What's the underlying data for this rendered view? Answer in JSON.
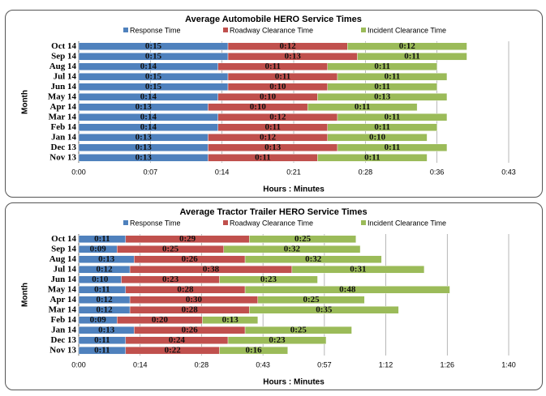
{
  "chart_data": [
    {
      "type": "bar",
      "orientation": "horizontal",
      "stacked": true,
      "title": "Average Automobile HERO Service Times",
      "xlabel": "Hours : Minutes",
      "ylabel": "Month",
      "categories": [
        "Oct 14",
        "Sep 14",
        "Aug 14",
        "Jul 14",
        "Jun 14",
        "May 14",
        "Apr 14",
        "Mar 14",
        "Feb 14",
        "Jan 14",
        "Dec 13",
        "Nov 13"
      ],
      "series": [
        {
          "name": "Response Time",
          "color": "#4f81bd",
          "values": [
            15,
            15,
            14,
            15,
            15,
            14,
            13,
            14,
            14,
            13,
            13,
            13
          ],
          "value_labels": [
            "0:15",
            "0:15",
            "0:14",
            "0:15",
            "0:15",
            "0:14",
            "0:13",
            "0:14",
            "0:14",
            "0:13",
            "0:13",
            "0:13"
          ]
        },
        {
          "name": "Roadway Clearance Time",
          "color": "#c0504d",
          "values": [
            12,
            13,
            11,
            11,
            10,
            10,
            10,
            12,
            11,
            12,
            13,
            11
          ],
          "value_labels": [
            "0:12",
            "0:13",
            "0:11",
            "0:11",
            "0:10",
            "0:10",
            "0:10",
            "0:12",
            "0:11",
            "0:12",
            "0:13",
            "0:11"
          ]
        },
        {
          "name": "Incident Clearance Time",
          "color": "#9bbb59",
          "values": [
            12,
            11,
            11,
            11,
            11,
            13,
            11,
            11,
            11,
            10,
            11,
            11
          ],
          "value_labels": [
            "0:12",
            "0:11",
            "0:11",
            "0:11",
            "0:11",
            "0:13",
            "0:11",
            "0:11",
            "0:11",
            "0:10",
            "0:11",
            "0:11"
          ]
        }
      ],
      "xlim": [
        0,
        43.2
      ],
      "xticks": [
        {
          "value": 0,
          "label": "0:00"
        },
        {
          "value": 7.2,
          "label": "0:07"
        },
        {
          "value": 14.4,
          "label": "0:14"
        },
        {
          "value": 21.6,
          "label": "0:21"
        },
        {
          "value": 28.8,
          "label": "0:28"
        },
        {
          "value": 36,
          "label": "0:36"
        },
        {
          "value": 43.2,
          "label": "0:43"
        }
      ],
      "grid": true,
      "legend": "top"
    },
    {
      "type": "bar",
      "orientation": "horizontal",
      "stacked": true,
      "title": "Average Tractor Trailer HERO Service Times",
      "xlabel": "Hours : Minutes",
      "ylabel": "Month",
      "categories": [
        "Oct 14",
        "Sep 14",
        "Aug 14",
        "Jul 14",
        "Jun 14",
        "May 14",
        "Apr 14",
        "Mar 14",
        "Feb 14",
        "Jan 14",
        "Dec 13",
        "Nov 13"
      ],
      "series": [
        {
          "name": "Response Time",
          "color": "#4f81bd",
          "values": [
            11,
            9,
            13,
            12,
            10,
            11,
            12,
            12,
            9,
            13,
            11,
            11
          ],
          "value_labels": [
            "0:11",
            "0:09",
            "0:13",
            "0:12",
            "0:10",
            "0:11",
            "0:12",
            "0:12",
            "0:09",
            "0:13",
            "0:11",
            "0:11"
          ]
        },
        {
          "name": "Roadway Clearance Time",
          "color": "#c0504d",
          "values": [
            29,
            25,
            26,
            38,
            23,
            28,
            30,
            28,
            20,
            26,
            24,
            22
          ],
          "value_labels": [
            "0:29",
            "0:25",
            "0:26",
            "0:38",
            "0:23",
            "0:28",
            "0:30",
            "0:28",
            "0:20",
            "0:26",
            "0:24",
            "0:22"
          ]
        },
        {
          "name": "Incident Clearance Time",
          "color": "#9bbb59",
          "values": [
            25,
            32,
            32,
            31,
            23,
            48,
            25,
            35,
            13,
            25,
            23,
            16
          ],
          "value_labels": [
            "0:25",
            "0:32",
            "0:32",
            "0:31",
            "0:23",
            "0:48",
            "0:25",
            "0:35",
            "0:13",
            "0:25",
            "0:23",
            "0:16"
          ]
        }
      ],
      "xlim": [
        0,
        100.8
      ],
      "xticks": [
        {
          "value": 0,
          "label": "0:00"
        },
        {
          "value": 14.4,
          "label": "0:14"
        },
        {
          "value": 28.8,
          "label": "0:28"
        },
        {
          "value": 43.2,
          "label": "0:43"
        },
        {
          "value": 57.6,
          "label": "0:57"
        },
        {
          "value": 72,
          "label": "1:12"
        },
        {
          "value": 86.4,
          "label": "1:26"
        },
        {
          "value": 100.8,
          "label": "1:40"
        }
      ],
      "grid": true,
      "legend": "top"
    }
  ]
}
